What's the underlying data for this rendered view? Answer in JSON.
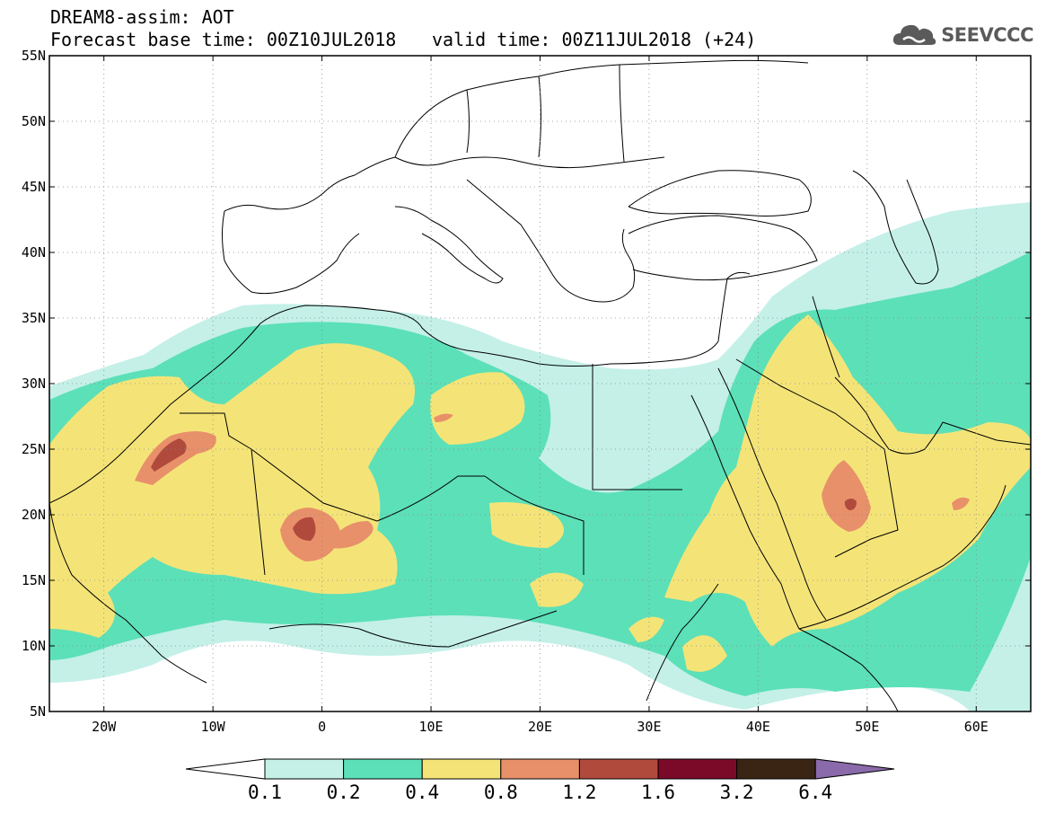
{
  "header": {
    "model_line": "DREAM8-assim: AOT",
    "base_time_line": "Forecast base time: 00Z10JUL2018",
    "valid_time_line": "valid time: 00Z11JUL2018 (+24)"
  },
  "logo": {
    "text": "SEEVCCC",
    "icon": "cloud-icon"
  },
  "map": {
    "lon_range": [
      -25,
      65
    ],
    "lat_range": [
      5,
      55
    ],
    "lon_ticks": [
      {
        "value": -20,
        "label": "20W"
      },
      {
        "value": -10,
        "label": "10W"
      },
      {
        "value": 0,
        "label": "0"
      },
      {
        "value": 10,
        "label": "10E"
      },
      {
        "value": 20,
        "label": "20E"
      },
      {
        "value": 30,
        "label": "30E"
      },
      {
        "value": 40,
        "label": "40E"
      },
      {
        "value": 50,
        "label": "50E"
      },
      {
        "value": 60,
        "label": "60E"
      }
    ],
    "lat_ticks": [
      {
        "value": 55,
        "label": "55N"
      },
      {
        "value": 50,
        "label": "50N"
      },
      {
        "value": 45,
        "label": "45N"
      },
      {
        "value": 40,
        "label": "40N"
      },
      {
        "value": 35,
        "label": "35N"
      },
      {
        "value": 30,
        "label": "30N"
      },
      {
        "value": 25,
        "label": "25N"
      },
      {
        "value": 20,
        "label": "20N"
      },
      {
        "value": 15,
        "label": "15N"
      },
      {
        "value": 10,
        "label": "10N"
      },
      {
        "value": 5,
        "label": "5N"
      }
    ],
    "gridlines": true
  },
  "colorbar": {
    "labels": [
      "0.1",
      "0.2",
      "0.4",
      "0.8",
      "1.2",
      "1.6",
      "3.2",
      "6.4"
    ],
    "colors": [
      "#c4f0e8",
      "#5ce0b8",
      "#f4e478",
      "#e8906a",
      "#b04a3c",
      "#7a0a28",
      "#3a2414"
    ],
    "under_color": "#ffffff",
    "over_color": "#8a6aaa"
  }
}
